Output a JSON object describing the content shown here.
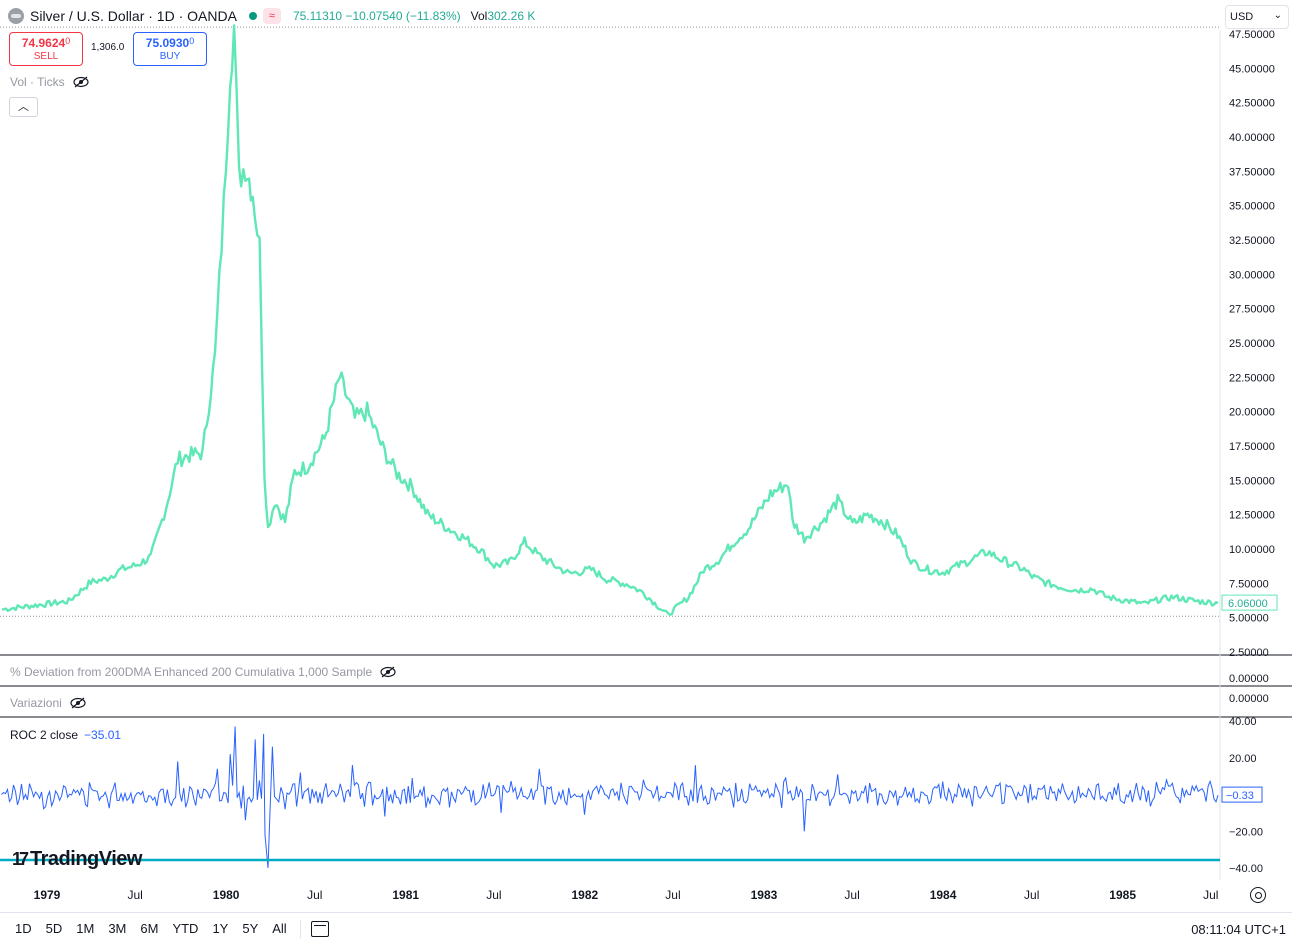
{
  "header": {
    "title": "Silver / U.S. Dollar · 1D · OANDA",
    "badge": "≈",
    "quote": "75.11310 −10.07540 (−11.83%)",
    "vol_label": "Vol",
    "vol_value": "302.26 K"
  },
  "trade": {
    "sell_price": "74.9624",
    "sell_small": "0",
    "sell_label": "SELL",
    "spread": "1,306.0",
    "buy_price": "75.0930",
    "buy_small": "0",
    "buy_label": "BUY"
  },
  "currency": "USD",
  "panes": {
    "vol_ticks": "Vol · Ticks",
    "deviation": "% Deviation from 200DMA Enhanced 200 Cumulativa 1,000 Sample",
    "variazioni": "Variazioni",
    "roc_label": "ROC 2 close",
    "roc_value": "−35.01"
  },
  "colors": {
    "price_line": "#5fe8b5",
    "roc_line": "#2962ff",
    "accent": "#22ab94",
    "sell": "#f23645",
    "buy": "#2962ff"
  },
  "logo_text": "TradingView",
  "bottom_bar": {
    "ranges": [
      "1D",
      "5D",
      "1M",
      "3M",
      "6M",
      "YTD",
      "1Y",
      "5Y",
      "All"
    ],
    "clock": "08:11:04 UTC+1"
  },
  "chart_data": [
    {
      "type": "line",
      "series": [
        {
          "x": [
            "1978-10-02",
            "1978-11-15",
            "1979-01-02",
            "1979-02-15",
            "1979-04-01",
            "1979-05-01",
            "1979-06-01",
            "1979-07-01",
            "1979-08-01",
            "1979-09-01",
            "1979-09-25",
            "1979-10-15",
            "1979-11-15",
            "1979-12-10",
            "1979-12-28",
            "1980-01-10",
            "1980-01-18",
            "1980-01-28",
            "1980-02-10",
            "1980-02-25",
            "1980-03-10",
            "1980-03-20",
            "1980-03-27",
            "1980-04-10",
            "1980-05-01",
            "1980-05-20",
            "1980-06-15",
            "1980-07-20",
            "1980-08-20",
            "1980-09-20",
            "1980-10-15",
            "1980-11-20",
            "1980-12-15",
            "1981-01-15",
            "1981-02-15",
            "1981-03-30",
            "1981-05-01",
            "1981-06-01",
            "1981-07-01",
            "1981-08-01",
            "1981-09-01",
            "1981-10-01",
            "1981-11-01",
            "1981-12-01",
            "1982-01-15",
            "1982-02-15",
            "1982-04-01",
            "1982-05-01",
            "1982-06-01",
            "1982-06-20",
            "1982-08-01",
            "1982-09-01",
            "1982-10-01",
            "1982-11-01",
            "1982-12-01",
            "1983-01-15",
            "1983-02-20",
            "1983-03-01",
            "1983-03-25",
            "1983-05-01",
            "1983-06-01",
            "1983-07-01",
            "1983-08-01",
            "1983-09-01",
            "1983-10-01",
            "1983-11-01",
            "1983-12-01",
            "1984-01-01",
            "1984-02-15",
            "1984-04-01",
            "1984-05-01",
            "1984-06-15",
            "1984-07-01",
            "1984-08-01",
            "1984-09-01",
            "1984-10-01",
            "1984-11-01",
            "1984-12-01",
            "1985-01-15",
            "1985-02-15",
            "1985-03-15",
            "1985-04-15",
            "1985-06-01",
            "1985-07-15"
          ],
          "y": [
            5.6,
            5.8,
            6.0,
            6.2,
            7.6,
            7.8,
            8.5,
            8.8,
            9.4,
            13.0,
            16.5,
            16.8,
            17.0,
            24.0,
            35.0,
            45.0,
            48.0,
            37.0,
            38.0,
            36.0,
            32.0,
            15.5,
            11.5,
            13.5,
            12.0,
            15.6,
            16.0,
            18.0,
            22.5,
            19.5,
            20.0,
            17.0,
            15.5,
            14.5,
            12.5,
            11.5,
            10.8,
            10.0,
            8.8,
            9.0,
            10.5,
            9.5,
            8.8,
            8.2,
            8.5,
            7.8,
            7.4,
            6.8,
            5.8,
            5.2,
            6.5,
            8.5,
            9.2,
            10.5,
            11.5,
            14.0,
            14.8,
            12.0,
            10.8,
            12.0,
            13.5,
            11.8,
            12.5,
            12.0,
            11.0,
            9.0,
            8.5,
            8.3,
            9.0,
            9.8,
            9.2,
            8.5,
            8.0,
            7.5,
            7.2,
            7.0,
            7.1,
            6.5,
            6.2,
            6.0,
            6.3,
            6.5,
            6.2,
            6.06
          ],
          "last_label": "6.06000"
        }
      ],
      "y_ticks": [
        "47.50000",
        "45.00000",
        "42.50000",
        "40.00000",
        "37.50000",
        "35.00000",
        "32.50000",
        "30.00000",
        "27.50000",
        "25.00000",
        "22.50000",
        "20.00000",
        "17.50000",
        "15.00000",
        "12.50000",
        "10.00000",
        "7.50000",
        "5.00000",
        "2.50000"
      ],
      "ylim": [
        2.5,
        47.5
      ],
      "x_ticks": [
        "1979",
        "Jul",
        "1980",
        "Jul",
        "1981",
        "Jul",
        "1982",
        "Jul",
        "1983",
        "Jul",
        "1984",
        "Jul",
        "1985",
        "Jul"
      ]
    },
    {
      "type": "line",
      "pane_ticks": {
        "deviation": "0.00000",
        "variazioni": "0.00000"
      },
      "series": [
        {
          "name": "ROC 2 close",
          "x": [
            "1978-10-01",
            "1979-03-01",
            "1979-08-01",
            "1979-09-25",
            "1979-11-01",
            "1979-12-15",
            "1980-01-10",
            "1980-01-20",
            "1980-02-10",
            "1980-03-01",
            "1980-03-18",
            "1980-03-21",
            "1980-03-27",
            "1980-04-05",
            "1980-05-01",
            "1980-06-01",
            "1980-07-15",
            "1980-09-15",
            "1980-11-20",
            "1981-01-15",
            "1981-04-01",
            "1981-07-15",
            "1981-10-01",
            "1982-01-01",
            "1982-05-01",
            "1982-08-01",
            "1982-08-15",
            "1982-11-01",
            "1983-02-15",
            "1983-03-01",
            "1983-03-25",
            "1983-06-01",
            "1983-10-01",
            "1984-01-01",
            "1984-05-01",
            "1984-09-01",
            "1985-01-01",
            "1985-04-01",
            "1985-07-15"
          ],
          "y": [
            0,
            1,
            -1,
            18,
            -6,
            14,
            22,
            37,
            -14,
            30,
            33,
            -22,
            -40,
            26,
            -8,
            12,
            -5,
            16,
            -12,
            9,
            -7,
            -10,
            14,
            -11,
            8,
            -6,
            16,
            -7,
            9,
            -3,
            -20,
            11,
            -6,
            7,
            -5,
            6,
            -4,
            8,
            -0.33
          ]
        }
      ],
      "y_ticks": [
        "40.00",
        "20.00",
        "0.00",
        "−20.00",
        "−40.00"
      ],
      "ylim": [
        -40,
        40
      ],
      "last_label": "−0.33"
    }
  ]
}
